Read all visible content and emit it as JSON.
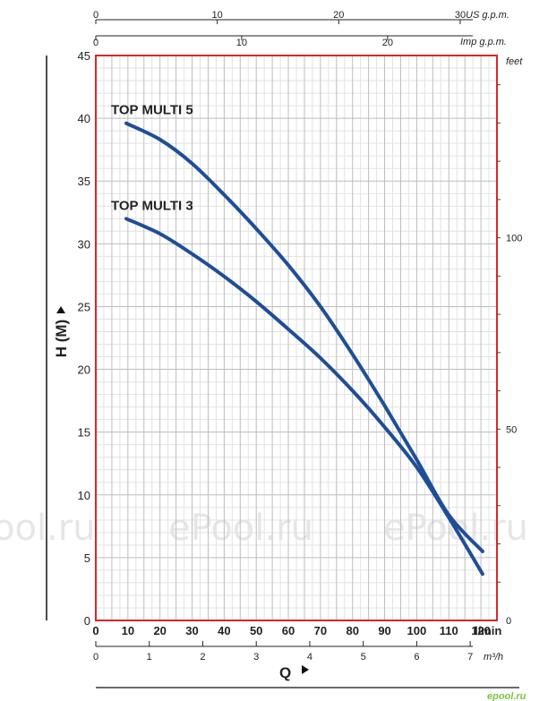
{
  "chart_data": {
    "type": "line",
    "series": [
      {
        "name": "TOP MULTI 5",
        "color": "#1f4e96",
        "x": [
          10,
          20,
          30,
          40,
          50,
          60,
          70,
          80,
          90,
          100,
          110,
          120
        ],
        "y": [
          39.6,
          38.3,
          36.4,
          33.9,
          31.2,
          28.3,
          25.0,
          21.2,
          17.1,
          12.8,
          8.4,
          5.5
        ]
      },
      {
        "name": "TOP MULTI 3",
        "color": "#1f4e96",
        "x": [
          10,
          20,
          30,
          40,
          50,
          60,
          70,
          80,
          90,
          100,
          110,
          120
        ],
        "y": [
          32.0,
          30.8,
          29.2,
          27.4,
          25.4,
          23.2,
          20.9,
          18.3,
          15.4,
          12.2,
          8.2,
          3.7
        ]
      }
    ],
    "y_axis": {
      "label": "H (M)",
      "ylim": [
        0,
        45
      ],
      "ticks": [
        "0",
        "5",
        "10",
        "15",
        "20",
        "25",
        "30",
        "35",
        "40",
        "45"
      ]
    },
    "x_axis": {
      "label": "Q",
      "unit": "l/min",
      "xlim": [
        0,
        125
      ],
      "tick_values": [
        0,
        10,
        20,
        30,
        40,
        50,
        60,
        70,
        80,
        90,
        100,
        110,
        120
      ]
    },
    "x_axis_m3h": {
      "unit": "m³/h",
      "ticks": [
        0,
        1,
        2,
        3,
        4,
        5,
        6,
        7
      ]
    },
    "top_axis_us": {
      "unit": "US g.p.m.",
      "ticks": [
        0,
        10,
        20,
        30
      ]
    },
    "top_axis_imp": {
      "unit": "Imp g.p.m.",
      "ticks": [
        0,
        10,
        20
      ]
    },
    "right_axis_feet": {
      "unit": "feet",
      "ticks": [
        0,
        50,
        100
      ]
    },
    "grid": true,
    "frame_color": "#d9262c",
    "curve_color": "#1f4e96"
  },
  "watermark": {
    "texts": [
      "ool.ru",
      "ePool.ru",
      "ePool.ru"
    ],
    "brand": "epool.ru"
  }
}
